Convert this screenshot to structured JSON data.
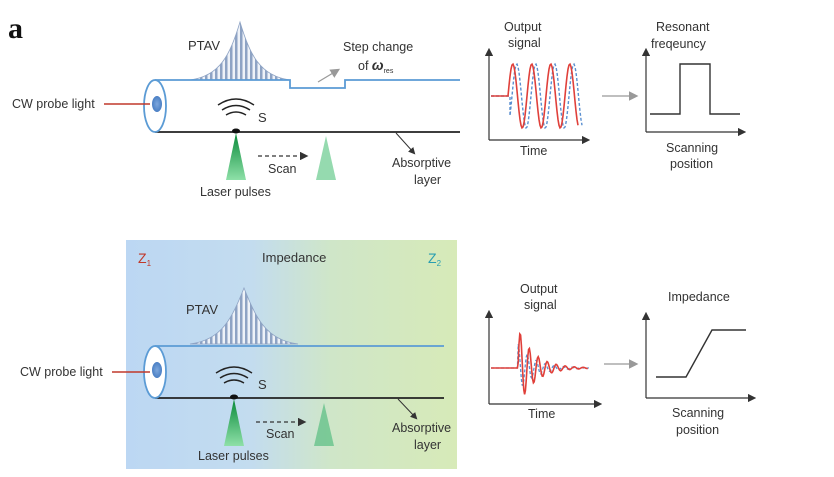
{
  "panel_label": "a",
  "top": {
    "ptav": "PTAV",
    "step_change_line1": "Step change",
    "step_change_of": "of ",
    "omega": "ω",
    "res_sub": "res",
    "cw_probe": "CW probe light",
    "s_label": "S",
    "scan": "Scan",
    "laser_pulses": "Laser pulses",
    "absorptive_line1": "Absorptive",
    "absorptive_line2": "layer",
    "chart1": {
      "title_line1": "Output",
      "title_line2": "signal",
      "xlabel": "Time"
    },
    "chart2": {
      "title_line1": "Resonant",
      "title_line2": "freqeuncy",
      "xlabel_line1": "Scanning",
      "xlabel_line2": "position"
    }
  },
  "bottom": {
    "z1": "Z",
    "z1_sub": "1",
    "z2": "Z",
    "z2_sub": "2",
    "impedance_header": "Impedance",
    "ptav": "PTAV",
    "cw_probe": "CW probe light",
    "s_label": "S",
    "scan": "Scan",
    "laser_pulses": "Laser pulses",
    "absorptive_line1": "Absorptive",
    "absorptive_line2": "layer",
    "chart1": {
      "title_line1": "Output",
      "title_line2": "signal",
      "xlabel": "Time"
    },
    "chart2": {
      "title": "Impedance",
      "xlabel_line1": "Scanning",
      "xlabel_line2": "position"
    }
  },
  "colors": {
    "fiber": "#5b9bd5",
    "signal_red": "#e0403a",
    "signal_blue": "#5a8fd0",
    "laser_green": "#3cb371",
    "z1_red": "#c0392b",
    "z2_teal": "#2a9fb0",
    "probe_arrow": "#c0392b"
  }
}
